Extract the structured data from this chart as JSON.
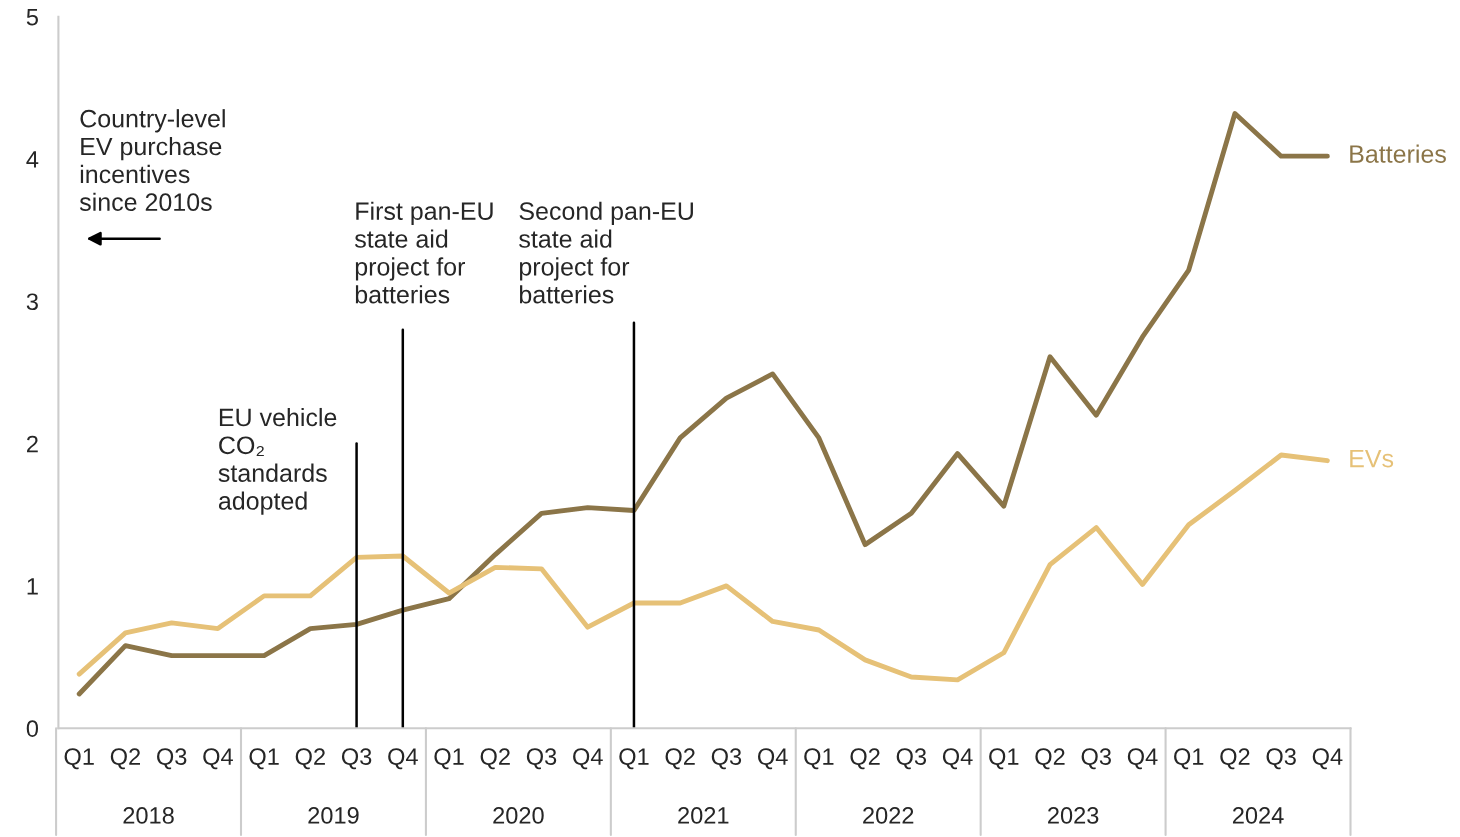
{
  "chart_data": {
    "type": "line",
    "categories": [
      "Q1",
      "Q2",
      "Q3",
      "Q4",
      "Q1",
      "Q2",
      "Q3",
      "Q4",
      "Q1",
      "Q2",
      "Q3",
      "Q4",
      "Q1",
      "Q2",
      "Q3",
      "Q4",
      "Q1",
      "Q2",
      "Q3",
      "Q4",
      "Q1",
      "Q2",
      "Q3",
      "Q4",
      "Q1",
      "Q2",
      "Q3",
      "Q4"
    ],
    "series": [
      {
        "name": "Batteries",
        "color": "#8b7548",
        "values": [
          0.24,
          0.58,
          0.51,
          0.51,
          0.51,
          0.7,
          0.73,
          0.83,
          0.91,
          1.22,
          1.51,
          1.55,
          1.53,
          2.04,
          2.32,
          2.49,
          2.04,
          1.29,
          1.51,
          1.93,
          1.56,
          2.61,
          2.2,
          2.75,
          3.22,
          4.32,
          4.02,
          4.02
        ]
      },
      {
        "name": "EVs",
        "color": "#e6c177",
        "values": [
          0.38,
          0.67,
          0.74,
          0.7,
          0.93,
          0.93,
          1.2,
          1.21,
          0.95,
          1.13,
          1.12,
          0.71,
          0.88,
          0.88,
          1.0,
          0.75,
          0.69,
          0.48,
          0.36,
          0.34,
          0.53,
          1.15,
          1.41,
          1.01,
          1.43,
          1.67,
          1.92,
          1.88
        ]
      }
    ],
    "ylim": [
      0,
      5
    ],
    "yticks": [
      0,
      1,
      2,
      3,
      4,
      5
    ],
    "grid": false,
    "legend": false,
    "marker": "none",
    "line_style": "solid",
    "annotations": [
      "Country-level\nEV purchase\nincentives\nsince 2010s",
      "EU vehicle\nCO₂\nstandards\nadopted",
      "First pan-EU\nstate aid\nproject for\nbatteries",
      "Second pan-EU\nstate aid\nproject for\nbatteries",
      "2018",
      "2019",
      "2020",
      "2021",
      "2022",
      "2023",
      "2024"
    ]
  }
}
